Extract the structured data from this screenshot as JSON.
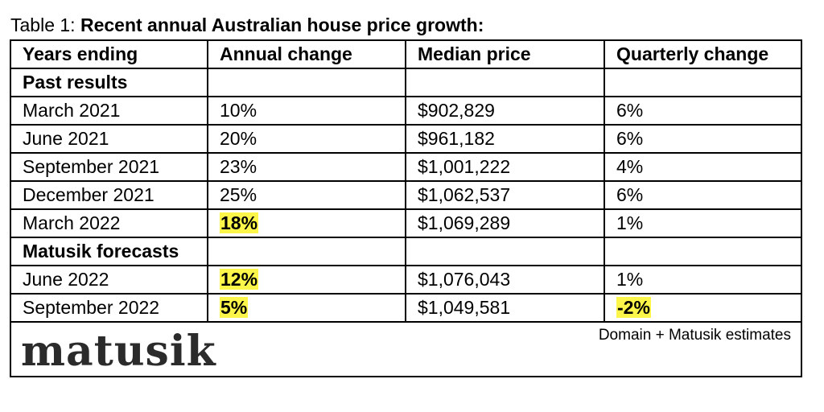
{
  "caption": {
    "prefix": "Table 1: ",
    "title": "Recent annual Australian house price growth:"
  },
  "table": {
    "headers": [
      "Years ending",
      "Annual change",
      "Median price",
      "Quarterly change"
    ],
    "sections": [
      {
        "label": "Past results",
        "rows": [
          {
            "period": "March 2021",
            "annual": "10%",
            "median": "$902,829",
            "quarterly": "6%"
          },
          {
            "period": "June 2021",
            "annual": "20%",
            "median": "$961,182",
            "quarterly": "6%"
          },
          {
            "period": "September 2021",
            "annual": "23%",
            "median": "$1,001,222",
            "quarterly": "4%"
          },
          {
            "period": "December 2021",
            "annual": "25%",
            "median": "$1,062,537",
            "quarterly": "6%"
          },
          {
            "period": "March 2022",
            "annual": "18%",
            "median": "$1,069,289",
            "quarterly": "1%"
          }
        ]
      },
      {
        "label": "Matusik forecasts",
        "rows": [
          {
            "period": "June 2022",
            "annual": "12%",
            "median": "$1,076,043",
            "quarterly": "1%"
          },
          {
            "period": "September 2022",
            "annual": "5%",
            "median": "$1,049,581",
            "quarterly": "-2%"
          }
        ]
      }
    ],
    "highlight_color": "#fcf64a"
  },
  "footer": {
    "logo": "matusik",
    "source": "Domain + Matusik estimates"
  }
}
